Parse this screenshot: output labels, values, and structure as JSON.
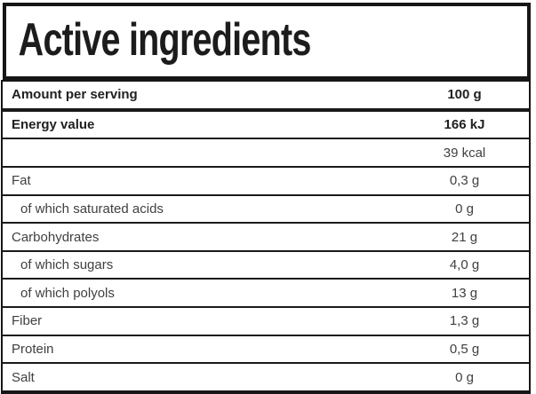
{
  "title": "Active ingredients",
  "colors": {
    "border": "#161616",
    "text_bold": "#212121",
    "text_regular": "#404040",
    "background": "#ffffff"
  },
  "table": {
    "rows": [
      {
        "label": "Amount per serving",
        "value": "100 g",
        "bold": true,
        "indent": false,
        "thick_bottom": true
      },
      {
        "label": "Energy value",
        "value": "166 kJ",
        "bold": true,
        "indent": false,
        "thick_bottom": false
      },
      {
        "label": "",
        "value": "39 kcal",
        "bold": false,
        "indent": false,
        "thick_bottom": false
      },
      {
        "label": "Fat",
        "value": "0,3 g",
        "bold": false,
        "indent": false,
        "thick_bottom": false
      },
      {
        "label": "of which saturated acids",
        "value": "0 g",
        "bold": false,
        "indent": true,
        "thick_bottom": false
      },
      {
        "label": "Carbohydrates",
        "value": "21 g",
        "bold": false,
        "indent": false,
        "thick_bottom": false
      },
      {
        "label": "of which sugars",
        "value": "4,0 g",
        "bold": false,
        "indent": true,
        "thick_bottom": false
      },
      {
        "label": "of which polyols",
        "value": "13 g",
        "bold": false,
        "indent": true,
        "thick_bottom": false
      },
      {
        "label": "Fiber",
        "value": "1,3 g",
        "bold": false,
        "indent": false,
        "thick_bottom": false
      },
      {
        "label": "Protein",
        "value": "0,5 g",
        "bold": false,
        "indent": false,
        "thick_bottom": false
      },
      {
        "label": "Salt",
        "value": "0 g",
        "bold": false,
        "indent": false,
        "thick_bottom": false
      }
    ]
  }
}
